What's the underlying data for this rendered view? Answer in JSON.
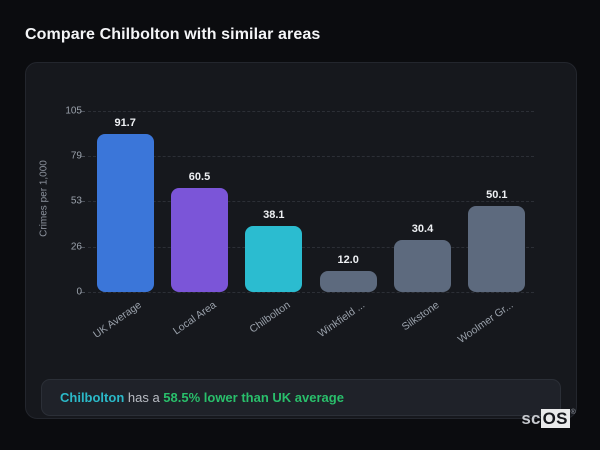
{
  "page_title": "Compare Chilbolton with similar areas",
  "chart_data": {
    "type": "bar",
    "categories": [
      "UK Average",
      "Local Area",
      "Chilbolton",
      "Winkfield ...",
      "Silkstone",
      "Woolmer Gr..."
    ],
    "values": [
      91.7,
      60.5,
      38.1,
      12.0,
      30.4,
      50.1
    ],
    "value_labels": [
      "91.7",
      "60.5",
      "38.1",
      "12.0",
      "30.4",
      "50.1"
    ],
    "bar_colors": [
      "#3b76d9",
      "#7b55d8",
      "#2bbcd0",
      "#5d6a7e",
      "#5d6a7e",
      "#5d6a7e"
    ],
    "title": "",
    "xlabel": "",
    "ylabel": "Crimes per 1,000",
    "yticks": [
      0,
      26,
      53,
      79,
      105
    ],
    "ylim": [
      0,
      105
    ],
    "grid": "horizontal-dashed",
    "legend": "none"
  },
  "summary": {
    "area_name": "Chilbolton",
    "middle_text": " has a ",
    "highlight_text": "58.5% lower than UK average",
    "area_color": "#2bb9c8",
    "highlight_color": "#29bf6b"
  },
  "logo": {
    "prefix": "sc",
    "suffix": "OS",
    "registered": "®"
  }
}
